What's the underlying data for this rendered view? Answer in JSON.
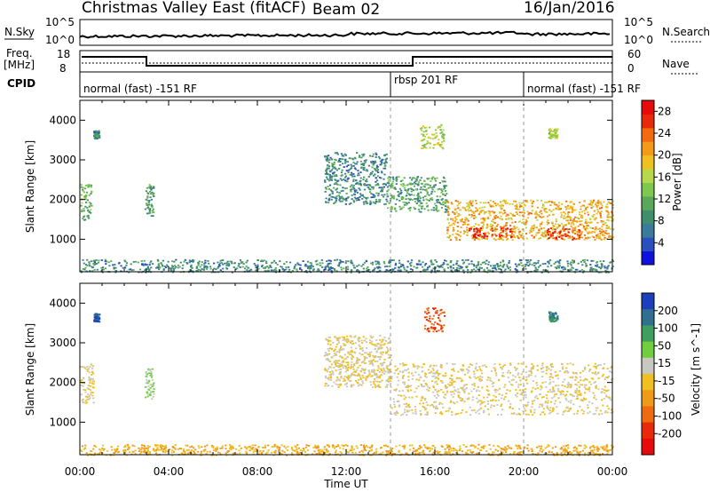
{
  "header": {
    "station": "Christmas Valley East (fitACF)",
    "beam": "Beam 02",
    "date": "16/Jan/2016"
  },
  "noise_panel": {
    "left_label": "N.Sky",
    "left_ticks": [
      "10^5",
      "10^0"
    ],
    "right_label": "N.Search",
    "right_ticks": [
      "10^5",
      "10^0"
    ]
  },
  "freq_panel": {
    "left_label_1": "Freq.",
    "left_label_2": "[MHz]",
    "left_ticks": [
      "18",
      "8"
    ],
    "right_label": "Nave",
    "right_ticks": [
      "60",
      "0"
    ]
  },
  "cpid": {
    "label": "CPID",
    "segments": [
      {
        "name": "normal (fast) -151 RF",
        "start_hour": 0,
        "end_hour": 14
      },
      {
        "name": "rbsp 201 RF",
        "start_hour": 14,
        "end_hour": 20
      },
      {
        "name": "normal (fast) -151 RF",
        "start_hour": 20,
        "end_hour": 24
      }
    ]
  },
  "chart_data": [
    {
      "type": "heatmap",
      "title": "",
      "xlabel": "Time UT",
      "ylabel": "Slant Range [km]",
      "x_ticks": [
        "00:00",
        "04:00",
        "08:00",
        "12:00",
        "16:00",
        "20:00",
        "00:00"
      ],
      "xlim_hours": [
        0,
        24
      ],
      "y_ticks": [
        1000,
        2000,
        3000,
        4000
      ],
      "ylim_km": [
        180,
        4500
      ],
      "colorbar_label": "Power [dB]",
      "colorbar_ticks": [
        4,
        8,
        12,
        16,
        20,
        24,
        28
      ],
      "colorbar_range": [
        0,
        30
      ],
      "colorscale": [
        "#1010e0",
        "#2a4fbf",
        "#3a7a9a",
        "#3f8f6a",
        "#5aa85a",
        "#7ec84e",
        "#b7d84a",
        "#f0c020",
        "#f39a1a",
        "#f36a10",
        "#e82a0a",
        "#e80a0a"
      ],
      "features": [
        {
          "hours": [
            0.0,
            0.5
          ],
          "range_km": [
            1500,
            2400
          ],
          "power_db": 12
        },
        {
          "hours": [
            0.6,
            0.85
          ],
          "range_km": [
            3550,
            3750
          ],
          "power_db": 8
        },
        {
          "hours": [
            2.9,
            3.3
          ],
          "range_km": [
            1600,
            2400
          ],
          "power_db": 10
        },
        {
          "hours": [
            11.0,
            13.8
          ],
          "range_km": [
            1900,
            3200
          ],
          "power_db": 8
        },
        {
          "hours": [
            13.8,
            16.5
          ],
          "range_km": [
            1700,
            2600
          ],
          "power_db": 10
        },
        {
          "hours": [
            15.3,
            16.4
          ],
          "range_km": [
            3300,
            3900
          ],
          "power_db": 16
        },
        {
          "hours": [
            16.5,
            24.0
          ],
          "range_km": [
            1000,
            2000
          ],
          "power_db": 20
        },
        {
          "hours": [
            17.5,
            19.5
          ],
          "range_km": [
            1050,
            1300
          ],
          "power_db": 28
        },
        {
          "hours": [
            21.0,
            22.5
          ],
          "range_km": [
            1000,
            1300
          ],
          "power_db": 26
        },
        {
          "hours": [
            21.1,
            21.5
          ],
          "range_km": [
            3550,
            3800
          ],
          "power_db": 16
        },
        {
          "hours": [
            0.0,
            24.0
          ],
          "range_km": [
            180,
            500
          ],
          "power_db": 8
        }
      ]
    },
    {
      "type": "heatmap",
      "title": "",
      "xlabel": "Time UT",
      "ylabel": "Slant Range [km]",
      "x_ticks": [
        "00:00",
        "04:00",
        "08:00",
        "12:00",
        "16:00",
        "20:00",
        "00:00"
      ],
      "xlim_hours": [
        0,
        24
      ],
      "y_ticks": [
        1000,
        2000,
        3000,
        4000
      ],
      "ylim_km": [
        180,
        4500
      ],
      "colorbar_label": "Velocity [m s^-1]",
      "colorbar_ticks": [
        200,
        100,
        50,
        15,
        -15,
        -50,
        -100,
        -200
      ],
      "colorbar_range": [
        -250,
        250
      ],
      "colorscale": [
        "#1a3fbf",
        "#2f6f8f",
        "#3f9f5f",
        "#6fcf3f",
        "#c8c8c0",
        "#f0c020",
        "#f09a1a",
        "#f06a10",
        "#e82a0a",
        "#e80a0a"
      ],
      "features": [
        {
          "hours": [
            0.0,
            0.6
          ],
          "range_km": [
            1500,
            2500
          ],
          "velocity": 0
        },
        {
          "hours": [
            0.6,
            0.85
          ],
          "range_km": [
            3550,
            3750
          ],
          "velocity": 200
        },
        {
          "hours": [
            2.9,
            3.3
          ],
          "range_km": [
            1600,
            2400
          ],
          "velocity": 50
        },
        {
          "hours": [
            11.0,
            14.0
          ],
          "range_km": [
            1900,
            3200
          ],
          "velocity": 0
        },
        {
          "hours": [
            14.0,
            24.0
          ],
          "range_km": [
            1200,
            2500
          ],
          "velocity": 0
        },
        {
          "hours": [
            15.5,
            16.4
          ],
          "range_km": [
            3300,
            3900
          ],
          "velocity": -150
        },
        {
          "hours": [
            21.1,
            21.5
          ],
          "range_km": [
            3550,
            3800
          ],
          "velocity": 150
        },
        {
          "hours": [
            0.0,
            24.0
          ],
          "range_km": [
            180,
            450
          ],
          "velocity": -50
        }
      ]
    }
  ]
}
